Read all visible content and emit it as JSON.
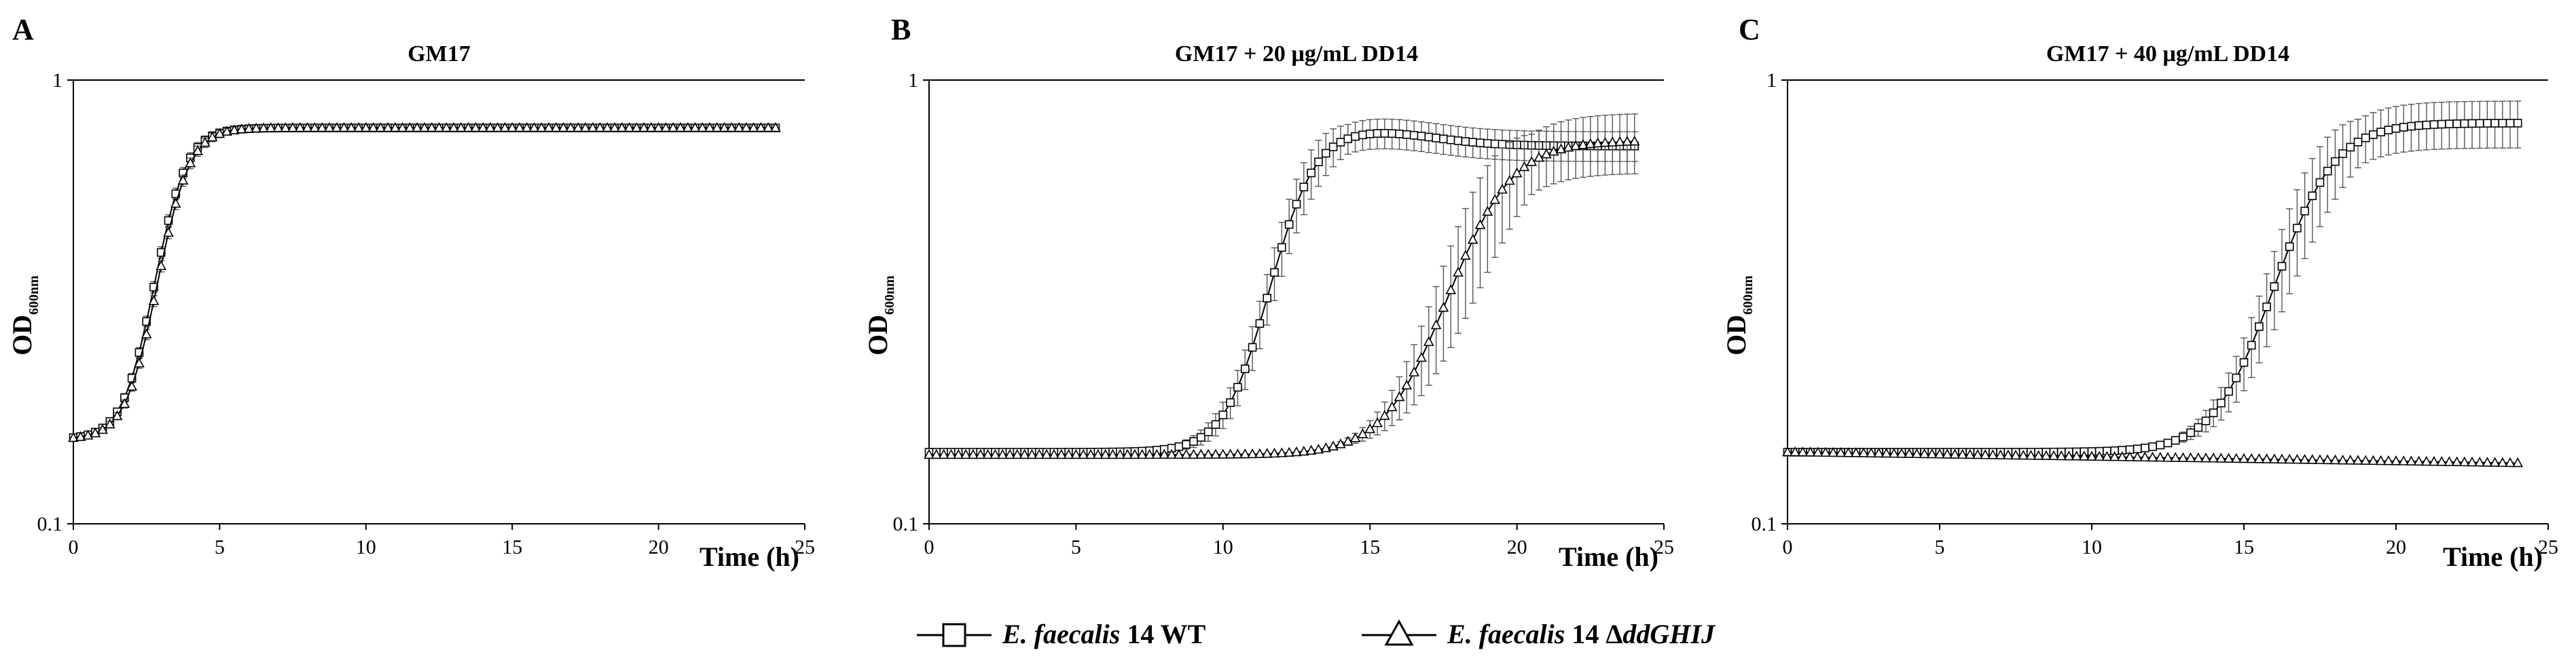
{
  "chart_data": [
    {
      "type": "line",
      "panel": "A",
      "title": "GM17",
      "xlabel": "Time (h)",
      "ylabel": "OD",
      "ylabel_sub": "600nm",
      "yscale": "log",
      "ylim": [
        0.1,
        1
      ],
      "xlim": [
        0,
        25
      ],
      "xticks": [
        "0",
        "5",
        "10",
        "15",
        "20",
        "25"
      ],
      "yticks": [
        "0.1",
        "1"
      ],
      "series": [
        {
          "name": "E. faecalis 14 WT",
          "marker": "square",
          "t_lag": 3.2,
          "k": 1.9,
          "base": 0.155,
          "plateau": 0.78,
          "err_frac": 0.03
        },
        {
          "name": "E. faecalis 14 ΔddGHIJ",
          "marker": "triangle",
          "t_lag": 3.3,
          "k": 1.9,
          "base": 0.155,
          "plateau": 0.78,
          "err_frac": 0.03
        }
      ]
    },
    {
      "type": "line",
      "panel": "B",
      "title": "GM17 + 20 µg/mL DD14",
      "xlabel": "Time (h)",
      "ylabel": "OD",
      "ylabel_sub": "600nm",
      "yscale": "log",
      "ylim": [
        0.1,
        1
      ],
      "xlim": [
        0,
        25
      ],
      "xticks": [
        "0",
        "5",
        "10",
        "15",
        "20",
        "25"
      ],
      "yticks": [
        "0.1",
        "1"
      ],
      "series": [
        {
          "name": "E. faecalis 14 WT",
          "marker": "square",
          "t_lag": 12.2,
          "k": 1.35,
          "base": 0.145,
          "plateau": 0.78,
          "late_plateau": 0.71,
          "err_frac": 0.14
        },
        {
          "name": "E. faecalis 14 ΔddGHIJ",
          "marker": "triangle",
          "t_lag": 18.5,
          "k": 0.95,
          "base": 0.143,
          "plateau": 0.73,
          "err_frac": 0.28
        }
      ]
    },
    {
      "type": "line",
      "panel": "C",
      "title": "GM17 + 40 µg/mL DD14",
      "xlabel": "Time (h)",
      "ylabel": "OD",
      "ylabel_sub": "600nm",
      "yscale": "log",
      "ylim": [
        0.1,
        1
      ],
      "xlim": [
        0,
        25
      ],
      "xticks": [
        "0",
        "5",
        "10",
        "15",
        "20",
        "25"
      ],
      "yticks": [
        "0.1",
        "1"
      ],
      "series": [
        {
          "name": "E. faecalis 14 WT",
          "marker": "square",
          "t_lag": 16.8,
          "k": 1.05,
          "base": 0.145,
          "plateau": 0.8,
          "err_frac": 0.22
        },
        {
          "name": "E. faecalis 14 ΔddGHIJ",
          "marker": "triangle",
          "flat_start": 0.145,
          "flat_end": 0.137,
          "err_frac": 0.01
        }
      ]
    }
  ],
  "legend": {
    "items": [
      {
        "italic": "E. faecalis",
        "normal": " 14 WT",
        "marker": "square"
      },
      {
        "italic": "E. faecalis",
        "normal": " 14 Δ",
        "italic2": "ddGHIJ",
        "marker": "triangle"
      }
    ]
  },
  "colors": {
    "ink": "#000000",
    "marker_fill": "#ffffff",
    "errbar": "#555555"
  }
}
